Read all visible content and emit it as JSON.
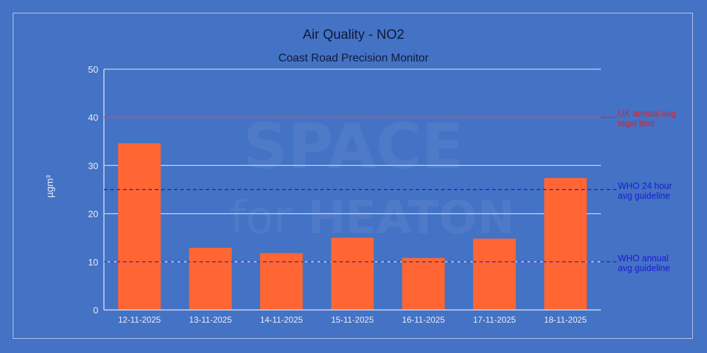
{
  "chart_data": {
    "type": "bar",
    "title": "Air Quality - NO2",
    "subtitle": "Coast Road Precision Monitor",
    "xlabel": "",
    "ylabel": "µgm³",
    "ylim": [
      0,
      50
    ],
    "yticks": [
      0,
      10,
      20,
      30,
      40,
      50
    ],
    "grid": true,
    "legend": "none",
    "categories": [
      "12-11-2025",
      "13-11-2025",
      "14-11-2025",
      "15-11-2025",
      "16-11-2025",
      "17-11-2025",
      "18-11-2025"
    ],
    "values": [
      34.6,
      12.9,
      11.8,
      15.0,
      10.8,
      14.8,
      27.4
    ],
    "bar_color": "#ff6633",
    "reference_lines": [
      {
        "value": 40,
        "label_line1": "UK annual avg",
        "label_line2": "legal limit",
        "color": "#e0202a",
        "style": "solid"
      },
      {
        "value": 25,
        "label_line1": "WHO 24 hour",
        "label_line2": "avg guideline",
        "color": "#1a1ad6",
        "style": "dashed"
      },
      {
        "value": 10,
        "label_line1": "WHO annual",
        "label_line2": "avg guideline",
        "color": "#1a1ad6",
        "style": "dashed"
      }
    ],
    "watermark": {
      "line1": "SPACE",
      "line2a": "for",
      "line2b": "HEATON"
    }
  },
  "colors": {
    "background": "#4472c4",
    "grid": "#c9d6ee",
    "bar": "#ff6633"
  }
}
